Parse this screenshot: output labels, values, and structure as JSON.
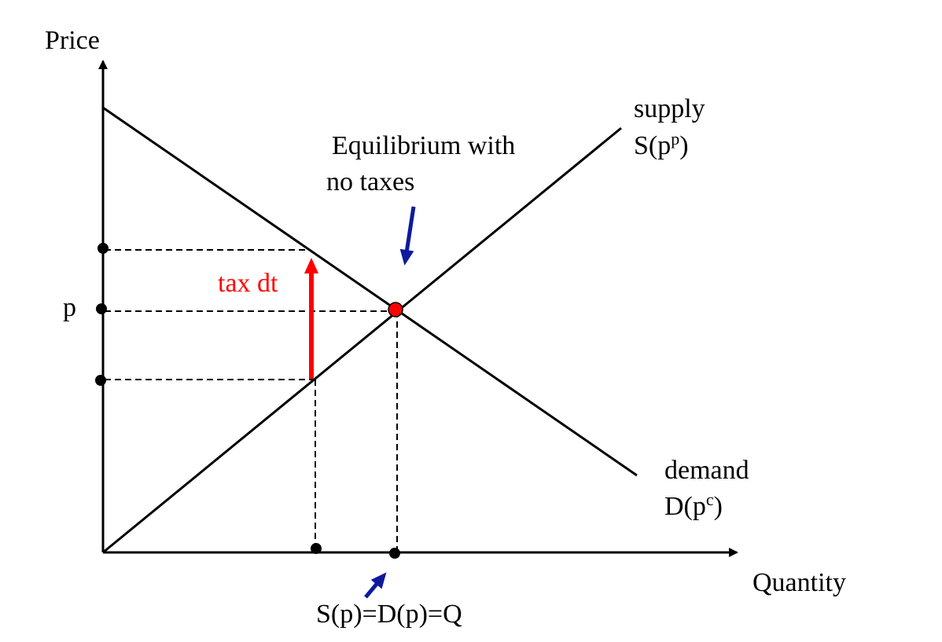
{
  "labels": {
    "y_axis": "Price",
    "x_axis": "Quantity",
    "supply_name": "supply",
    "supply_func_base": "S(p",
    "supply_func_sup": "p",
    "supply_func_end": ")",
    "demand_name": "demand",
    "demand_func_base": "D(p",
    "demand_func_sup": "c",
    "demand_func_end": ")",
    "equilibrium_line1": "Equilibrium with",
    "equilibrium_line2": "no taxes",
    "price_tick": "p",
    "tax": "tax dt",
    "quantity_eq": "S(p)=D(p)=Q"
  },
  "colors": {
    "tax_arrow": "#ff0000",
    "pointer_arrows": "#0d1a9e",
    "equilibrium_point": "#ff0000",
    "lines": "#000000"
  },
  "icons": {
    "equilibrium_pointer": "down-left-arrow",
    "quantity_pointer": "up-right-arrow"
  }
}
